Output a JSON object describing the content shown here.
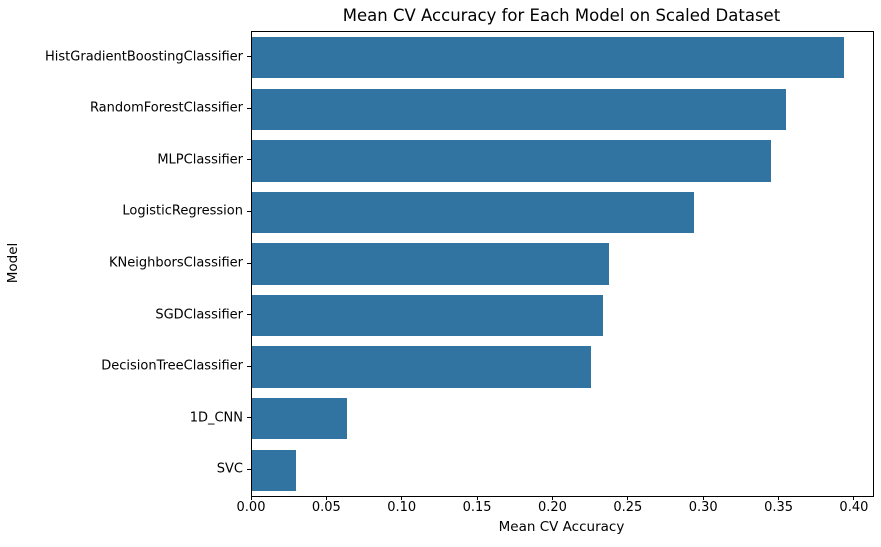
{
  "chart_data": {
    "type": "bar",
    "orientation": "horizontal",
    "title": "Mean CV Accuracy for Each Model on Scaled Dataset",
    "xlabel": "Mean CV Accuracy",
    "ylabel": "Model",
    "categories": [
      "HistGradientBoostingClassifier",
      "RandomForestClassifier",
      "MLPClassifier",
      "LogisticRegression",
      "KNeighborsClassifier",
      "SGDClassifier",
      "DecisionTreeClassifier",
      "1D_CNN",
      "SVC"
    ],
    "values": [
      0.393,
      0.354,
      0.344,
      0.293,
      0.237,
      0.233,
      0.225,
      0.063,
      0.029
    ],
    "xticks": [
      0.0,
      0.05,
      0.1,
      0.15,
      0.2,
      0.25,
      0.3,
      0.35,
      0.4
    ],
    "xlim": [
      0,
      0.412
    ],
    "bar_color": "#3274a1",
    "grid": false,
    "legend": false
  }
}
